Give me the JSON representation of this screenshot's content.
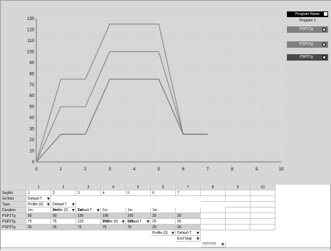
{
  "panel": {
    "header": "Program Name",
    "program": "Program 1",
    "psp_rows": [
      "PSP1Tg",
      "PSP2Tg",
      "PSP3Tg"
    ]
  },
  "chart_data": {
    "type": "line",
    "title": "",
    "xlabel": "",
    "ylabel": "",
    "xlim": [
      0,
      10
    ],
    "ylim": [
      0,
      130
    ],
    "x_ticks": [
      "0",
      "1",
      "2",
      "3",
      "4",
      "5",
      "6",
      "7",
      "8",
      "9",
      "10"
    ],
    "y_ticks": [
      "0",
      "10",
      "20",
      "30",
      "40",
      "50",
      "60",
      "70",
      "80",
      "90",
      "100",
      "110",
      "120",
      "130"
    ],
    "grid": true,
    "series": [
      {
        "color": "#8c8c8c",
        "x": [
          0,
          1,
          2,
          3,
          4,
          5,
          6,
          7
        ],
        "y": [
          0,
          75,
          75,
          125,
          125,
          125,
          25,
          25
        ]
      },
      {
        "color": "#8c8c8c",
        "x": [
          0,
          1,
          2,
          3,
          4,
          5,
          6,
          7
        ],
        "y": [
          0,
          50,
          50,
          100,
          100,
          100,
          25,
          25
        ]
      },
      {
        "color": "#777777",
        "x": [
          0,
          1,
          2,
          3,
          4,
          5,
          6,
          7
        ],
        "y": [
          0,
          25,
          25,
          75,
          75,
          75,
          25,
          25
        ]
      }
    ]
  },
  "table": {
    "col_headers": [
      "",
      "1",
      "2",
      "3",
      "4",
      "5",
      "6",
      "7",
      "8",
      "9",
      "10"
    ],
    "rows": [
      {
        "label": "SegNo",
        "cells": [
          "1",
          "2",
          "3",
          "4",
          "5",
          "6",
          "7",
          "",
          "",
          ""
        ]
      },
      {
        "label": "GoToId",
        "cells": [
          "Default T",
          "Default T",
          "Default T",
          "Default T",
          "Default T",
          "Default T",
          "Default T",
          "",
          "",
          ""
        ],
        "combo": true
      },
      {
        "label": "Type",
        "cells": [
          "Profile (0)",
          "Profile (0)",
          "Profile (0)",
          "Profile (0)",
          "Profile (0)",
          "Profile (0)",
          "End Segr",
          "???????",
          "",
          ""
        ],
        "combo": true
      },
      {
        "label": "Duration",
        "cells": [
          "1m",
          "1m",
          "1m",
          "1m",
          "1m",
          "1m",
          "",
          "",
          "",
          ""
        ]
      },
      {
        "label": "PSP1Tg",
        "cells": [
          "50",
          "50",
          "100",
          "100",
          "100",
          "25",
          "25",
          "",
          "",
          ""
        ]
      },
      {
        "label": "PSP2Tg",
        "cells": [
          "75",
          "75",
          "125",
          "125",
          "125",
          "25",
          "25",
          "",
          "",
          ""
        ]
      },
      {
        "label": "PSP3Tg",
        "cells": [
          "25",
          "25",
          "75",
          "75",
          "75",
          "25",
          "25",
          "",
          "",
          ""
        ]
      }
    ]
  }
}
